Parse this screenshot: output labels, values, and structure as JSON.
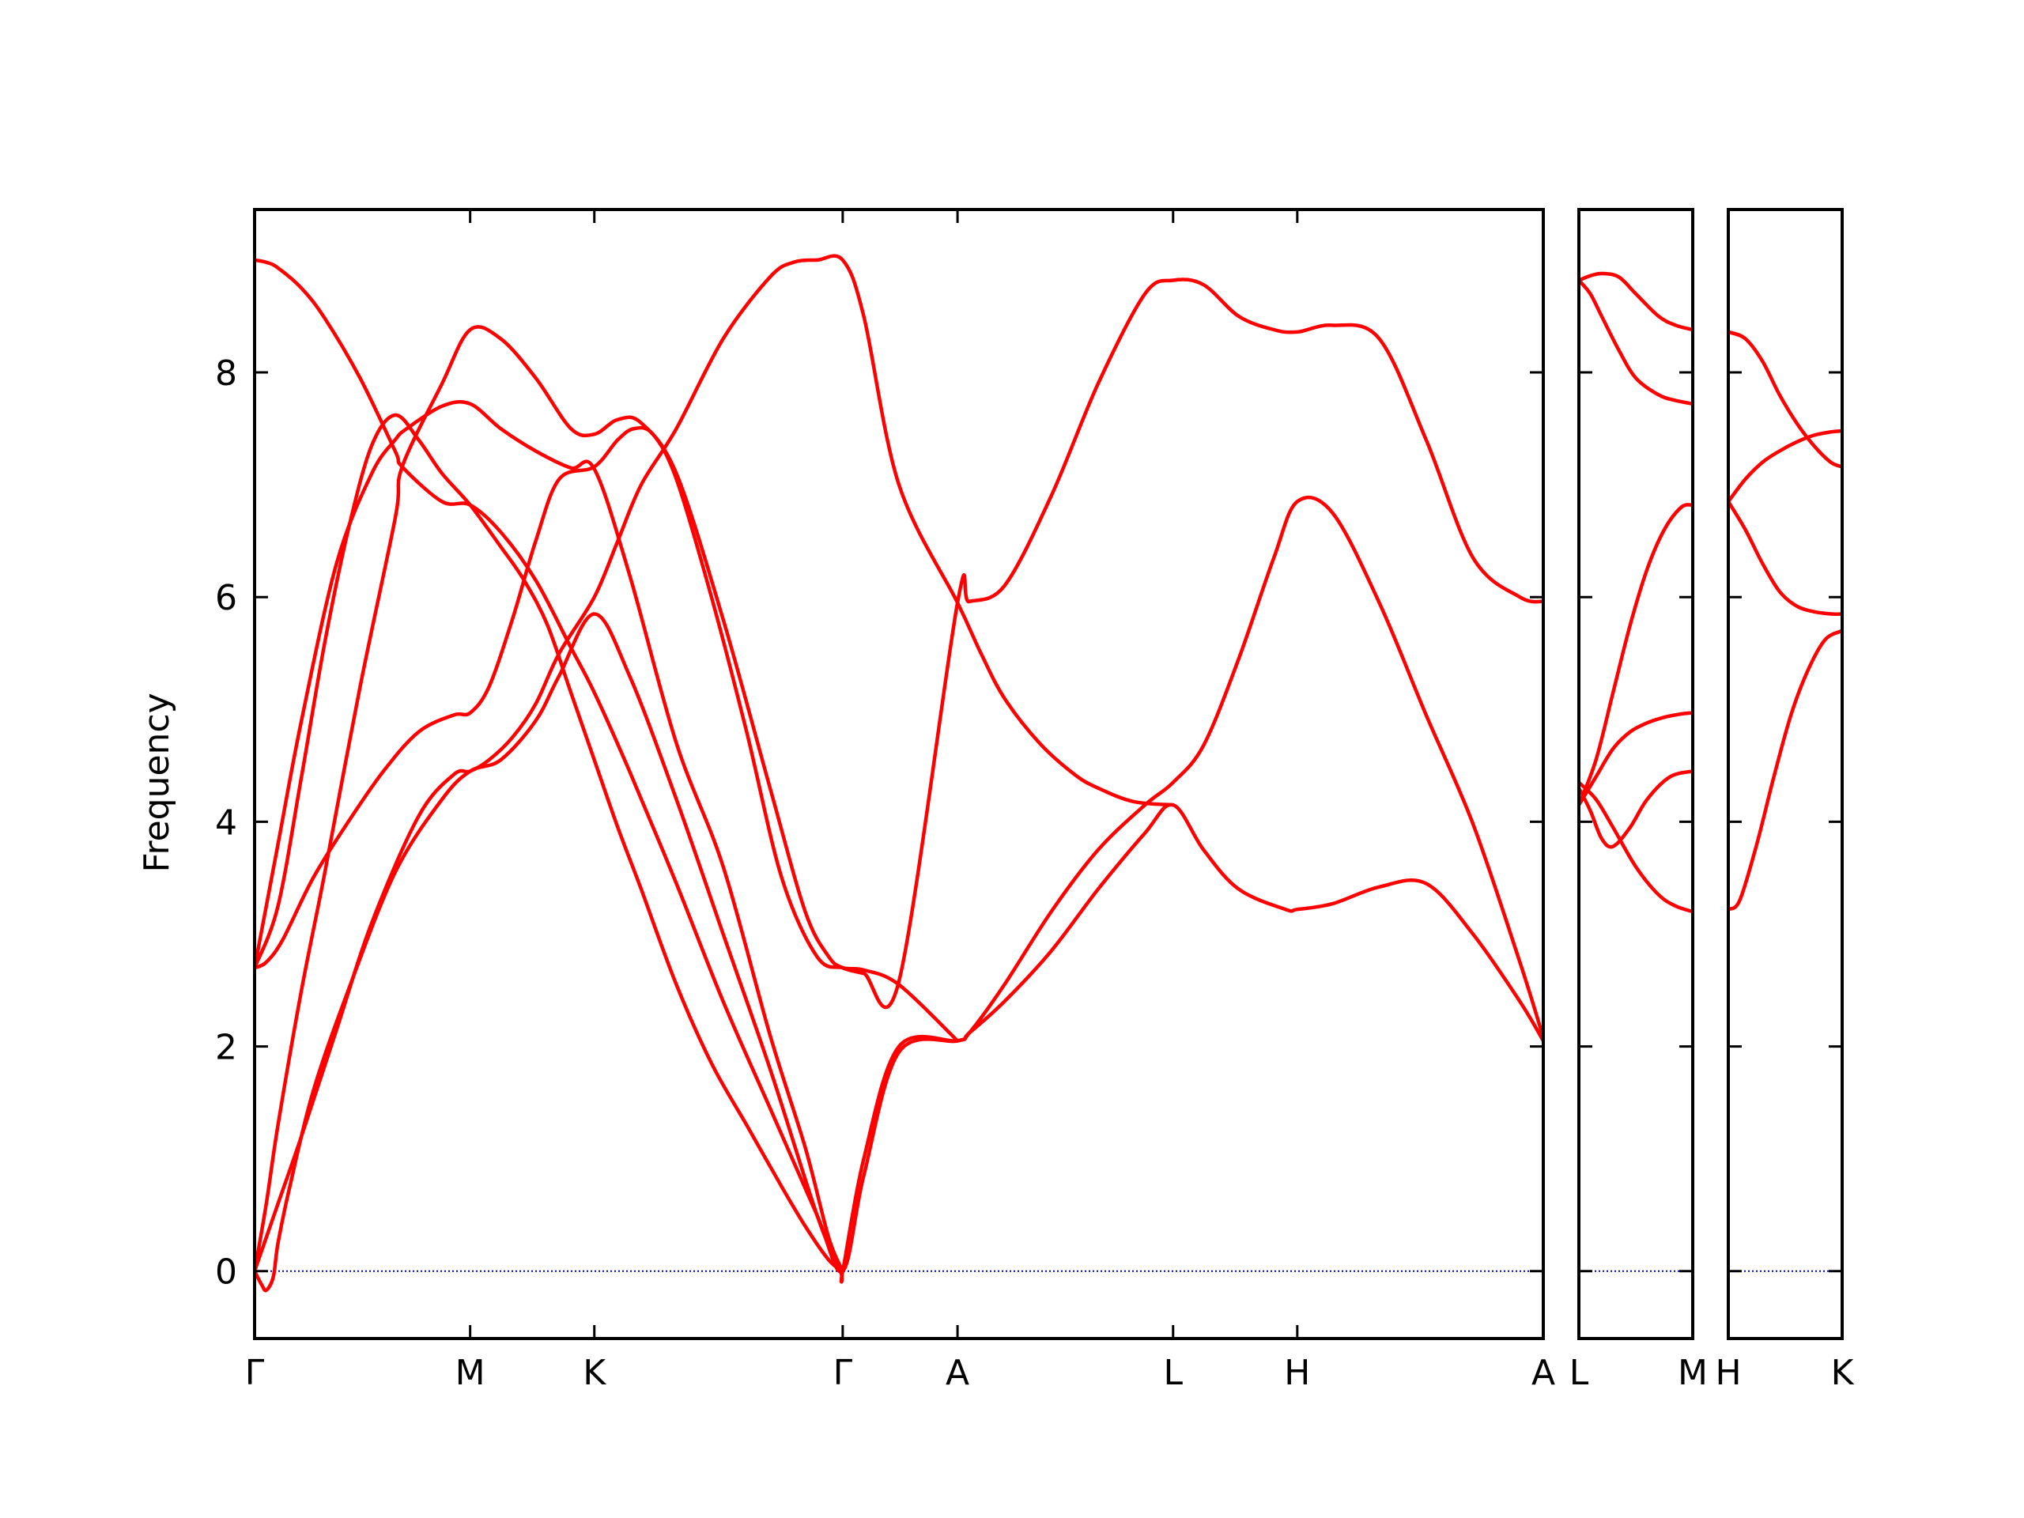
{
  "chart_data": {
    "type": "line",
    "ylabel": "Frequency",
    "ylim": [
      -0.6,
      9.45
    ],
    "yticks": [
      0,
      2,
      4,
      6,
      8
    ],
    "grid": false,
    "legend": "none",
    "colors": {
      "bands": "#ff0000",
      "zero_line": "#0000cc",
      "frame": "#000000"
    },
    "panels": [
      {
        "xlim": [
          0,
          5.5
        ],
        "ticks": [
          {
            "x": 0,
            "label": "Γ"
          },
          {
            "x": 0.92,
            "label": "M"
          },
          {
            "x": 1.45,
            "label": "K"
          },
          {
            "x": 2.51,
            "label": "Γ"
          },
          {
            "x": 3.0,
            "label": "A"
          },
          {
            "x": 3.92,
            "label": "L"
          },
          {
            "x": 4.45,
            "label": "H"
          },
          {
            "x": 5.5,
            "label": "A"
          }
        ],
        "series": [
          {
            "x": [
              0,
              0.05,
              0.1,
              0.2,
              0.3,
              0.45,
              0.6,
              0.63,
              0.8,
              0.92,
              1.05,
              1.2,
              1.35,
              1.45,
              1.6,
              1.8,
              2.0,
              2.2,
              2.4,
              2.51,
              2.6,
              2.75,
              3.0,
              3.05,
              3.2,
              3.4,
              3.6,
              3.8,
              3.92,
              4.05,
              4.2,
              4.35,
              4.45,
              4.6,
              4.8,
              5.0,
              5.2,
              5.4,
              5.5
            ],
            "y": [
              9.0,
              8.98,
              8.93,
              8.75,
              8.48,
              7.95,
              7.3,
              7.16,
              6.85,
              6.82,
              6.58,
              6.15,
              5.55,
              5.15,
              4.45,
              3.45,
              2.4,
              1.45,
              0.5,
              0.0,
              0.85,
              1.95,
              2.05,
              2.12,
              2.55,
              3.2,
              3.75,
              4.15,
              4.35,
              4.68,
              5.45,
              6.35,
              6.85,
              6.75,
              5.95,
              4.95,
              3.98,
              2.75,
              2.08
            ]
          },
          {
            "x": [
              0,
              0.05,
              0.1,
              0.2,
              0.3,
              0.45,
              0.6,
              0.63,
              0.8,
              0.92,
              1.05,
              1.2,
              1.35,
              1.45,
              1.55,
              1.65,
              1.8,
              2.0,
              2.2,
              2.35,
              2.45,
              2.51,
              2.6,
              2.75,
              3.0,
              3.05,
              3.2,
              3.4,
              3.6,
              3.8,
              3.92,
              4.05,
              4.2,
              4.35,
              4.45,
              4.6,
              4.8,
              5.0,
              5.2,
              5.4,
              5.5
            ],
            "y": [
              0.0,
              0.6,
              1.3,
              2.5,
              3.55,
              5.2,
              6.7,
              7.16,
              7.9,
              8.38,
              8.3,
              7.95,
              7.5,
              7.45,
              7.58,
              7.55,
              7.1,
              5.8,
              4.3,
              3.2,
              2.8,
              2.7,
              2.65,
              2.58,
              5.95,
              5.96,
              6.1,
              6.9,
              7.9,
              8.7,
              8.82,
              8.78,
              8.5,
              8.38,
              8.36,
              8.42,
              8.3,
              7.4,
              6.35,
              6.0,
              5.96
            ]
          },
          {
            "x": [
              0,
              0.03,
              0.05,
              0.08,
              0.1,
              0.15,
              0.25,
              0.4,
              0.6,
              0.8,
              0.92,
              1.05,
              1.2,
              1.3,
              1.45,
              1.6,
              1.8,
              2.0,
              2.2,
              2.4,
              2.5,
              2.51,
              2.6,
              2.75,
              3.0,
              3.05,
              3.2,
              3.4,
              3.6,
              3.8,
              3.92,
              4.05,
              4.2,
              4.4,
              4.45,
              4.6,
              4.8,
              5.0,
              5.2,
              5.4,
              5.5
            ],
            "y": [
              0.0,
              -0.12,
              -0.17,
              -0.05,
              0.25,
              0.75,
              1.6,
              2.5,
              3.55,
              4.2,
              4.45,
              4.55,
              4.9,
              5.3,
              5.85,
              5.3,
              4.2,
              3.0,
              1.8,
              0.5,
              0.0,
              0.0,
              1.0,
              2.0,
              2.05,
              2.12,
              2.4,
              2.85,
              3.4,
              3.9,
              4.15,
              3.75,
              3.4,
              3.22,
              3.22,
              3.27,
              3.42,
              3.45,
              3.0,
              2.4,
              2.05
            ]
          },
          {
            "x": [
              0,
              0.1,
              0.2,
              0.35,
              0.5,
              0.7,
              0.85,
              0.92,
              1.0,
              1.1,
              1.2,
              1.3,
              1.45,
              1.55,
              1.65,
              1.8,
              2.0,
              2.2,
              2.3,
              2.4,
              2.51,
              2.6,
              2.75,
              3.0,
              3.1,
              3.2,
              3.35,
              3.5,
              3.6,
              3.75,
              3.92
            ],
            "y": [
              0.0,
              0.6,
              1.2,
              2.15,
              3.1,
              4.05,
              4.42,
              4.45,
              4.55,
              4.75,
              5.05,
              5.5,
              6.0,
              6.5,
              7.0,
              7.5,
              8.3,
              8.85,
              8.98,
              9.0,
              9.0,
              8.5,
              7.0,
              5.95,
              5.5,
              5.1,
              4.7,
              4.42,
              4.3,
              4.18,
              4.15
            ]
          },
          {
            "x": [
              0,
              0.05,
              0.12,
              0.25,
              0.4,
              0.55,
              0.7,
              0.85,
              0.92,
              1.0,
              1.1,
              1.2,
              1.3,
              1.45,
              1.55,
              1.62,
              1.7,
              1.8,
              1.95,
              2.1,
              2.25,
              2.4,
              2.51,
              2.6,
              2.75,
              3.0
            ],
            "y": [
              2.7,
              2.75,
              2.95,
              3.5,
              4.0,
              4.45,
              4.8,
              4.95,
              4.97,
              5.2,
              5.8,
              6.5,
              7.05,
              7.16,
              7.4,
              7.5,
              7.45,
              7.05,
              6.0,
              4.8,
              3.5,
              2.8,
              2.7,
              2.68,
              2.55,
              2.05
            ]
          },
          {
            "x": [
              0,
              0.1,
              0.2,
              0.3,
              0.4,
              0.5,
              0.6,
              0.7,
              0.8,
              0.92,
              1.05,
              1.15,
              1.25,
              1.35,
              1.45,
              1.55,
              1.65,
              1.8,
              1.95,
              2.1,
              2.25,
              2.35,
              2.45,
              2.51
            ],
            "y": [
              2.7,
              3.25,
              4.4,
              5.6,
              6.6,
              7.35,
              7.62,
              7.4,
              7.1,
              6.82,
              6.45,
              6.15,
              5.75,
              5.15,
              4.55,
              3.95,
              3.4,
              2.55,
              1.85,
              1.3,
              0.75,
              0.4,
              0.1,
              0.0
            ]
          },
          {
            "x": [
              0,
              0.1,
              0.2,
              0.35,
              0.5,
              0.6,
              0.65,
              0.8,
              0.92,
              1.05,
              1.2,
              1.35,
              1.45,
              1.6,
              1.8,
              2.0,
              2.2,
              2.35,
              2.45,
              2.51
            ],
            "y": [
              2.7,
              3.8,
              4.9,
              6.3,
              7.1,
              7.4,
              7.5,
              7.7,
              7.72,
              7.5,
              7.3,
              7.15,
              7.14,
              6.2,
              4.7,
              3.6,
              2.1,
              1.1,
              0.3,
              0.0
            ]
          }
        ]
      },
      {
        "xlim": [
          0,
          1
        ],
        "ticks": [
          {
            "x": 0,
            "label": "L"
          },
          {
            "x": 1,
            "label": "M"
          }
        ],
        "series": [
          {
            "x": [
              0,
              0.1,
              0.2,
              0.35,
              0.5,
              0.7,
              0.85,
              1.0
            ],
            "y": [
              8.82,
              8.86,
              8.88,
              8.85,
              8.7,
              8.5,
              8.42,
              8.38
            ]
          },
          {
            "x": [
              0,
              0.1,
              0.2,
              0.35,
              0.5,
              0.7,
              0.85,
              1.0
            ],
            "y": [
              8.82,
              8.7,
              8.5,
              8.2,
              7.95,
              7.8,
              7.75,
              7.72
            ]
          },
          {
            "x": [
              0,
              0.15,
              0.3,
              0.5,
              0.7,
              0.85,
              1.0
            ],
            "y": [
              4.35,
              4.2,
              3.95,
              3.6,
              3.35,
              3.25,
              3.2
            ]
          },
          {
            "x": [
              0,
              0.1,
              0.2,
              0.3,
              0.45,
              0.6,
              0.8,
              1.0
            ],
            "y": [
              4.3,
              4.1,
              3.85,
              3.78,
              3.95,
              4.2,
              4.4,
              4.45
            ]
          },
          {
            "x": [
              0,
              0.15,
              0.3,
              0.45,
              0.6,
              0.75,
              0.9,
              1.0
            ],
            "y": [
              4.15,
              4.4,
              4.65,
              4.8,
              4.88,
              4.93,
              4.96,
              4.97
            ]
          },
          {
            "x": [
              0,
              0.15,
              0.3,
              0.45,
              0.6,
              0.75,
              0.9,
              1.0
            ],
            "y": [
              4.15,
              4.55,
              5.15,
              5.75,
              6.25,
              6.6,
              6.8,
              6.82
            ]
          }
        ]
      },
      {
        "xlim": [
          0,
          1
        ],
        "ticks": [
          {
            "x": 0,
            "label": "H"
          },
          {
            "x": 1,
            "label": "K"
          }
        ],
        "series": [
          {
            "x": [
              0,
              0.15,
              0.3,
              0.45,
              0.6,
              0.75,
              0.9,
              1.0
            ],
            "y": [
              8.36,
              8.3,
              8.1,
              7.8,
              7.55,
              7.35,
              7.2,
              7.16
            ]
          },
          {
            "x": [
              0,
              0.15,
              0.3,
              0.45,
              0.6,
              0.75,
              0.9,
              1.0
            ],
            "y": [
              6.85,
              7.05,
              7.2,
              7.3,
              7.38,
              7.44,
              7.47,
              7.48
            ]
          },
          {
            "x": [
              0,
              0.15,
              0.3,
              0.45,
              0.6,
              0.75,
              0.9,
              1.0
            ],
            "y": [
              6.85,
              6.6,
              6.3,
              6.05,
              5.92,
              5.87,
              5.85,
              5.85
            ]
          },
          {
            "x": [
              0,
              0.1,
              0.25,
              0.4,
              0.55,
              0.7,
              0.85,
              1.0
            ],
            "y": [
              3.22,
              3.3,
              3.8,
              4.4,
              4.95,
              5.35,
              5.62,
              5.7
            ]
          }
        ]
      }
    ]
  }
}
